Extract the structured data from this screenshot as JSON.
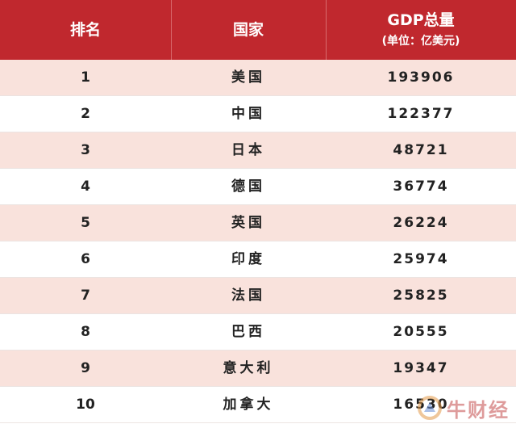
{
  "header": {
    "rank_label": "排名",
    "country_label": "国家",
    "gdp_label": "GDP总量",
    "gdp_unit": "(单位：亿美元)"
  },
  "rows": [
    {
      "rank": "1",
      "country": "美国",
      "gdp": "193906"
    },
    {
      "rank": "2",
      "country": "中国",
      "gdp": "122377"
    },
    {
      "rank": "3",
      "country": "日本",
      "gdp": "48721"
    },
    {
      "rank": "4",
      "country": "德国",
      "gdp": "36774"
    },
    {
      "rank": "5",
      "country": "英国",
      "gdp": "26224"
    },
    {
      "rank": "6",
      "country": "印度",
      "gdp": "25974"
    },
    {
      "rank": "7",
      "country": "法国",
      "gdp": "25825"
    },
    {
      "rank": "8",
      "country": "巴西",
      "gdp": "20555"
    },
    {
      "rank": "9",
      "country": "意大利",
      "gdp": "19347"
    },
    {
      "rank": "10",
      "country": "加拿大",
      "gdp": "16530"
    }
  ],
  "watermark": {
    "text": "牛财经",
    "icon": "niucaijing-logo-icon"
  },
  "colors": {
    "header_bg": "#c0282e",
    "header_text": "#ffffff",
    "row_odd_bg": "#f9e2dc",
    "row_even_bg": "#ffffff"
  }
}
